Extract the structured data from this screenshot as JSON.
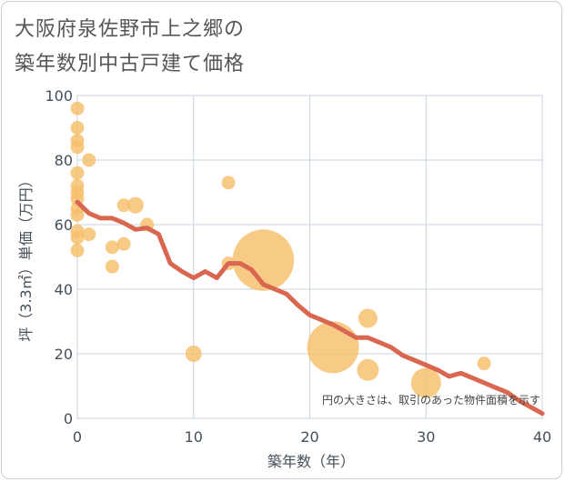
{
  "title_line1": "大阪府泉佐野市上之郷の",
  "title_line2": "築年数別中古戸建て価格",
  "colors": {
    "bubble": "#f5c06b",
    "line": "#d9674f",
    "grid": "#c7d3dd",
    "axis_text": "#444f5a"
  },
  "chart_data": {
    "type": "scatter",
    "title": "大阪府泉佐野市上之郷の築年数別中古戸建て価格",
    "xlabel": "築年数（年）",
    "ylabel": "坪（3.3㎡）単価（万円）",
    "xlim": [
      0,
      40
    ],
    "ylim": [
      0,
      100
    ],
    "xticks": [
      0,
      10,
      20,
      30,
      40
    ],
    "yticks": [
      0,
      20,
      40,
      60,
      80,
      100
    ],
    "grid": true,
    "note": "円の大きさは、取引のあった物件面積を示す",
    "bubbles": [
      {
        "x": 0,
        "y": 96,
        "size": 1
      },
      {
        "x": 0,
        "y": 90,
        "size": 1
      },
      {
        "x": 0,
        "y": 86,
        "size": 1
      },
      {
        "x": 0,
        "y": 84,
        "size": 1
      },
      {
        "x": 0,
        "y": 76,
        "size": 1
      },
      {
        "x": 0,
        "y": 72,
        "size": 1
      },
      {
        "x": 0,
        "y": 70,
        "size": 1
      },
      {
        "x": 0,
        "y": 68,
        "size": 1
      },
      {
        "x": 0,
        "y": 65,
        "size": 1
      },
      {
        "x": 0,
        "y": 63,
        "size": 1
      },
      {
        "x": 0,
        "y": 58,
        "size": 1
      },
      {
        "x": 0,
        "y": 56,
        "size": 1
      },
      {
        "x": 0,
        "y": 52,
        "size": 1
      },
      {
        "x": 1,
        "y": 80,
        "size": 1
      },
      {
        "x": 1,
        "y": 57,
        "size": 1
      },
      {
        "x": 3,
        "y": 53,
        "size": 1
      },
      {
        "x": 3,
        "y": 47,
        "size": 1
      },
      {
        "x": 4,
        "y": 66,
        "size": 1
      },
      {
        "x": 4,
        "y": 54,
        "size": 1
      },
      {
        "x": 5,
        "y": 66,
        "size": 1.2
      },
      {
        "x": 6,
        "y": 60,
        "size": 1
      },
      {
        "x": 10,
        "y": 20,
        "size": 1.2
      },
      {
        "x": 13,
        "y": 73,
        "size": 1
      },
      {
        "x": 13,
        "y": 48,
        "size": 1
      },
      {
        "x": 16,
        "y": 49,
        "size": 4.5
      },
      {
        "x": 22,
        "y": 22,
        "size": 3.8
      },
      {
        "x": 25,
        "y": 31,
        "size": 1.4
      },
      {
        "x": 25,
        "y": 15,
        "size": 1.6
      },
      {
        "x": 30,
        "y": 11,
        "size": 2.2
      },
      {
        "x": 35,
        "y": 17,
        "size": 1
      }
    ],
    "trend_line": {
      "x": [
        0,
        1,
        2,
        3,
        4,
        5,
        6,
        7,
        8,
        9,
        10,
        11,
        12,
        13,
        14,
        15,
        16,
        17,
        18,
        19,
        20,
        21,
        22,
        23,
        24,
        25,
        26,
        27,
        28,
        29,
        30,
        31,
        32,
        33,
        34,
        35,
        36,
        37,
        38,
        39,
        40
      ],
      "y": [
        67,
        63.5,
        62,
        62,
        60.5,
        58.5,
        59,
        57,
        48,
        45.5,
        43.5,
        45.5,
        43.5,
        48,
        48,
        46,
        41.5,
        40,
        38.5,
        35,
        32,
        30.5,
        29,
        27,
        25,
        25,
        23.5,
        22,
        19.5,
        18,
        16.5,
        15,
        13,
        14,
        12.5,
        11,
        9.5,
        8,
        5.5,
        3.5,
        1.5
      ]
    }
  }
}
